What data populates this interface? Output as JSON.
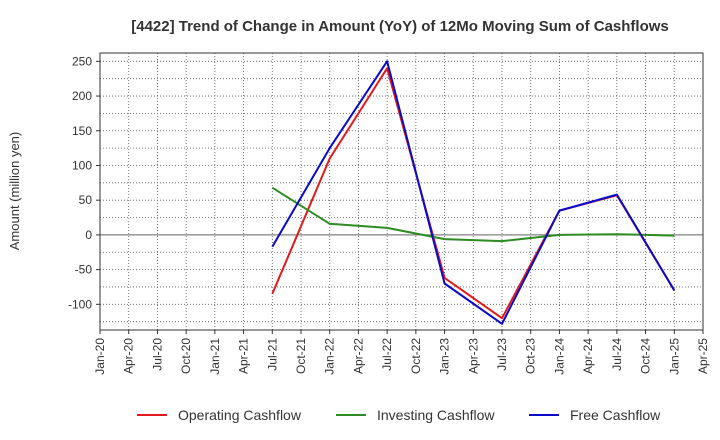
{
  "chart_data": {
    "type": "line",
    "title": "[4422]  Trend of Change in Amount (YoY) of 12Mo Moving Sum of Cashflows",
    "xlabel": "",
    "ylabel": "Amount (million yen)",
    "ylim": [
      -137,
      262
    ],
    "yticks": [
      250,
      200,
      150,
      100,
      50,
      0,
      -50,
      -100
    ],
    "categories": [
      "Jan-20",
      "Apr-20",
      "Jul-20",
      "Oct-20",
      "Jan-21",
      "Apr-21",
      "Jul-21",
      "Oct-21",
      "Jan-22",
      "Apr-22",
      "Jul-22",
      "Oct-22",
      "Jan-23",
      "Apr-23",
      "Jul-23",
      "Oct-23",
      "Jan-24",
      "Apr-24",
      "Jul-24",
      "Oct-24",
      "Jan-25",
      "Apr-25"
    ],
    "grid": true,
    "legend_position": "bottom",
    "series": [
      {
        "name": "Operating Cashflow",
        "color": "#e31a1c",
        "values": [
          null,
          null,
          null,
          null,
          null,
          null,
          -85,
          null,
          110,
          null,
          240,
          null,
          -62,
          null,
          -120,
          null,
          35,
          null,
          57,
          null,
          -80,
          null
        ]
      },
      {
        "name": "Investing Cashflow",
        "color": "#2e8b22",
        "values": [
          null,
          null,
          null,
          null,
          null,
          null,
          68,
          null,
          16,
          null,
          10,
          null,
          -6,
          null,
          -9,
          null,
          0,
          null,
          1,
          null,
          -1,
          null
        ]
      },
      {
        "name": "Free Cashflow",
        "color": "#0a0ac8",
        "values": [
          null,
          null,
          null,
          null,
          null,
          null,
          -17,
          null,
          125,
          null,
          250,
          null,
          -70,
          null,
          -128,
          null,
          35,
          null,
          58,
          null,
          -80,
          null
        ]
      }
    ]
  }
}
